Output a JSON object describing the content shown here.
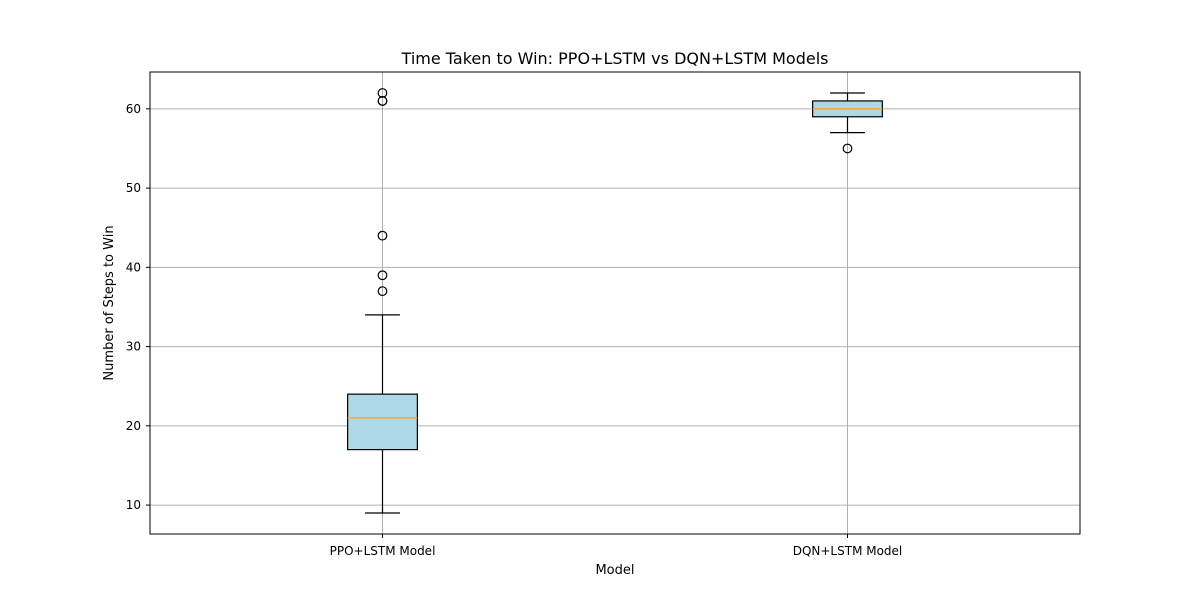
{
  "chart_data": {
    "type": "boxplot",
    "title": "Time Taken to Win: PPO+LSTM vs DQN+LSTM Models",
    "xlabel": "Model",
    "ylabel": "Number of Steps to Win",
    "ylim": [
      6.35,
      64.65
    ],
    "yticks": [
      10,
      20,
      30,
      40,
      50,
      60
    ],
    "grid": true,
    "categories": [
      "PPO+LSTM Model",
      "DQN+LSTM Model"
    ],
    "boxes": [
      {
        "category": "PPO+LSTM Model",
        "whisker_low": 9,
        "q1": 17,
        "median": 21,
        "q3": 24,
        "whisker_high": 34,
        "outliers": [
          37,
          39,
          44,
          61,
          61,
          62
        ]
      },
      {
        "category": "DQN+LSTM Model",
        "whisker_low": 57,
        "q1": 59,
        "median": 60,
        "q3": 61,
        "whisker_high": 62,
        "outliers": [
          55
        ]
      }
    ],
    "colors": {
      "box_fill": "#add8e6",
      "box_edge": "#000000",
      "median": "#ff9f1c",
      "grid": "#b0b0b0",
      "axes": "#000000"
    }
  }
}
